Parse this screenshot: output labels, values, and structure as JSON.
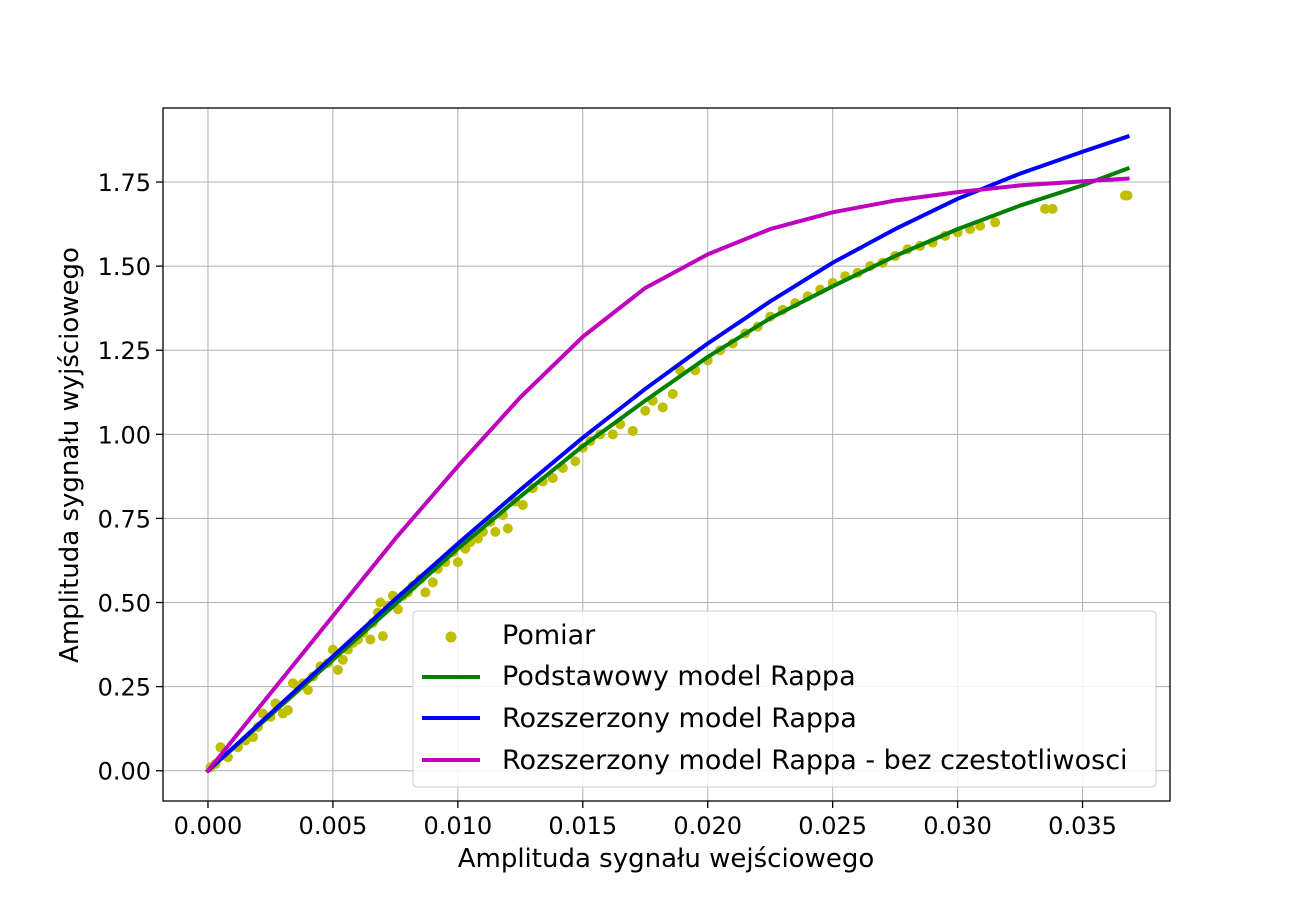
{
  "chart_data": {
    "type": "line",
    "xlabel": "Amplituda sygnału wejściowego",
    "ylabel": "Amplituda sygnału wyjściowego",
    "xlim": [
      -0.0018,
      0.0385
    ],
    "ylim": [
      -0.09,
      1.97
    ],
    "x_ticks": [
      "0.000",
      "0.005",
      "0.010",
      "0.015",
      "0.020",
      "0.025",
      "0.030",
      "0.035"
    ],
    "y_ticks": [
      "0.00",
      "0.25",
      "0.50",
      "0.75",
      "1.00",
      "1.25",
      "1.50",
      "1.75"
    ],
    "grid": true,
    "legend_position": "lower-right",
    "colors": {
      "measurement": "#bfbf00",
      "basic": "#008000",
      "extended": "#0000ff",
      "extended_no_freq": "#bf00bf"
    },
    "series": [
      {
        "name": "Pomiar",
        "kind": "scatter",
        "color": "#bfbf00",
        "points": [
          [
            0.0001,
            0.01
          ],
          [
            0.0003,
            0.02
          ],
          [
            0.0005,
            0.07
          ],
          [
            0.0008,
            0.04
          ],
          [
            0.0012,
            0.07
          ],
          [
            0.0015,
            0.09
          ],
          [
            0.0018,
            0.1
          ],
          [
            0.002,
            0.13
          ],
          [
            0.0022,
            0.17
          ],
          [
            0.0025,
            0.16
          ],
          [
            0.0027,
            0.2
          ],
          [
            0.003,
            0.17
          ],
          [
            0.0032,
            0.18
          ],
          [
            0.0034,
            0.26
          ],
          [
            0.0036,
            0.25
          ],
          [
            0.0038,
            0.26
          ],
          [
            0.004,
            0.24
          ],
          [
            0.0042,
            0.28
          ],
          [
            0.0045,
            0.31
          ],
          [
            0.0048,
            0.32
          ],
          [
            0.005,
            0.36
          ],
          [
            0.0052,
            0.3
          ],
          [
            0.0054,
            0.33
          ],
          [
            0.0056,
            0.36
          ],
          [
            0.0058,
            0.38
          ],
          [
            0.006,
            0.39
          ],
          [
            0.0062,
            0.41
          ],
          [
            0.0065,
            0.39
          ],
          [
            0.0066,
            0.44
          ],
          [
            0.0068,
            0.47
          ],
          [
            0.0069,
            0.5
          ],
          [
            0.007,
            0.4
          ],
          [
            0.0072,
            0.49
          ],
          [
            0.0074,
            0.52
          ],
          [
            0.0076,
            0.48
          ],
          [
            0.0078,
            0.52
          ],
          [
            0.008,
            0.53
          ],
          [
            0.0082,
            0.55
          ],
          [
            0.0085,
            0.57
          ],
          [
            0.0087,
            0.53
          ],
          [
            0.009,
            0.56
          ],
          [
            0.0092,
            0.6
          ],
          [
            0.0095,
            0.62
          ],
          [
            0.0098,
            0.65
          ],
          [
            0.01,
            0.62
          ],
          [
            0.0103,
            0.66
          ],
          [
            0.0105,
            0.68
          ],
          [
            0.0108,
            0.69
          ],
          [
            0.011,
            0.71
          ],
          [
            0.0113,
            0.74
          ],
          [
            0.0115,
            0.71
          ],
          [
            0.0118,
            0.76
          ],
          [
            0.012,
            0.72
          ],
          [
            0.0123,
            0.8
          ],
          [
            0.0126,
            0.79
          ],
          [
            0.013,
            0.84
          ],
          [
            0.0134,
            0.86
          ],
          [
            0.0138,
            0.87
          ],
          [
            0.0142,
            0.9
          ],
          [
            0.0147,
            0.92
          ],
          [
            0.015,
            0.96
          ],
          [
            0.0153,
            0.98
          ],
          [
            0.0157,
            1.0
          ],
          [
            0.0162,
            1.0
          ],
          [
            0.0165,
            1.03
          ],
          [
            0.017,
            1.01
          ],
          [
            0.0175,
            1.07
          ],
          [
            0.0178,
            1.1
          ],
          [
            0.0182,
            1.08
          ],
          [
            0.0186,
            1.12
          ],
          [
            0.0189,
            1.19
          ],
          [
            0.0195,
            1.19
          ],
          [
            0.02,
            1.22
          ],
          [
            0.0205,
            1.25
          ],
          [
            0.021,
            1.27
          ],
          [
            0.0215,
            1.3
          ],
          [
            0.022,
            1.32
          ],
          [
            0.0225,
            1.35
          ],
          [
            0.023,
            1.37
          ],
          [
            0.0235,
            1.39
          ],
          [
            0.024,
            1.41
          ],
          [
            0.0245,
            1.43
          ],
          [
            0.025,
            1.45
          ],
          [
            0.0255,
            1.47
          ],
          [
            0.026,
            1.48
          ],
          [
            0.0265,
            1.5
          ],
          [
            0.027,
            1.51
          ],
          [
            0.0275,
            1.53
          ],
          [
            0.028,
            1.55
          ],
          [
            0.0285,
            1.56
          ],
          [
            0.029,
            1.57
          ],
          [
            0.0295,
            1.59
          ],
          [
            0.03,
            1.6
          ],
          [
            0.0305,
            1.61
          ],
          [
            0.0309,
            1.62
          ],
          [
            0.0315,
            1.63
          ],
          [
            0.0335,
            1.67
          ],
          [
            0.0338,
            1.67
          ],
          [
            0.0367,
            1.71
          ],
          [
            0.0368,
            1.71
          ]
        ]
      },
      {
        "name": "Podstawowy model Rappa",
        "kind": "line",
        "color": "#008000",
        "points": [
          [
            0.0,
            0.0
          ],
          [
            0.0025,
            0.165
          ],
          [
            0.005,
            0.33
          ],
          [
            0.0075,
            0.495
          ],
          [
            0.01,
            0.66
          ],
          [
            0.0125,
            0.815
          ],
          [
            0.015,
            0.965
          ],
          [
            0.0175,
            1.1
          ],
          [
            0.02,
            1.23
          ],
          [
            0.0225,
            1.345
          ],
          [
            0.025,
            1.44
          ],
          [
            0.0275,
            1.53
          ],
          [
            0.03,
            1.61
          ],
          [
            0.0325,
            1.68
          ],
          [
            0.035,
            1.74
          ],
          [
            0.0368,
            1.79
          ]
        ]
      },
      {
        "name": "Rozszerzony model Rappa",
        "kind": "line",
        "color": "#0000ff",
        "points": [
          [
            0.0,
            0.0
          ],
          [
            0.0025,
            0.17
          ],
          [
            0.005,
            0.34
          ],
          [
            0.0075,
            0.51
          ],
          [
            0.01,
            0.675
          ],
          [
            0.0125,
            0.835
          ],
          [
            0.015,
            0.99
          ],
          [
            0.0175,
            1.135
          ],
          [
            0.02,
            1.27
          ],
          [
            0.0225,
            1.395
          ],
          [
            0.025,
            1.51
          ],
          [
            0.0275,
            1.61
          ],
          [
            0.03,
            1.7
          ],
          [
            0.0325,
            1.775
          ],
          [
            0.035,
            1.84
          ],
          [
            0.0368,
            1.885
          ]
        ]
      },
      {
        "name": "Rozszerzony model Rappa - bez czestotliwosci",
        "kind": "line",
        "color": "#bf00bf",
        "points": [
          [
            0.0,
            0.0
          ],
          [
            0.0025,
            0.23
          ],
          [
            0.005,
            0.46
          ],
          [
            0.0075,
            0.69
          ],
          [
            0.01,
            0.905
          ],
          [
            0.0125,
            1.11
          ],
          [
            0.015,
            1.29
          ],
          [
            0.0175,
            1.435
          ],
          [
            0.02,
            1.535
          ],
          [
            0.0225,
            1.61
          ],
          [
            0.025,
            1.66
          ],
          [
            0.0275,
            1.695
          ],
          [
            0.03,
            1.72
          ],
          [
            0.0325,
            1.74
          ],
          [
            0.035,
            1.752
          ],
          [
            0.0368,
            1.76
          ]
        ]
      }
    ]
  }
}
